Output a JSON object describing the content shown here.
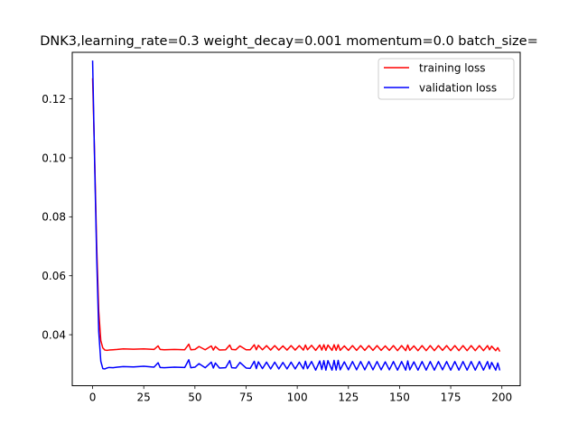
{
  "chart_data": {
    "type": "line",
    "title": "DNK3,learning_rate=0.3  weight_decay=0.001  momentum=0.0  batch_size=",
    "xlabel": "",
    "ylabel": "",
    "xlim": [
      -9.95,
      208.95
    ],
    "ylim": [
      0.0227,
      0.1358
    ],
    "xticks": [
      0,
      25,
      50,
      75,
      100,
      125,
      150,
      175,
      200
    ],
    "xtick_labels": [
      "0",
      "25",
      "50",
      "75",
      "100",
      "125",
      "150",
      "175",
      "200"
    ],
    "yticks": [
      0.04,
      0.06,
      0.08,
      0.1,
      0.12
    ],
    "ytick_labels": [
      "0.04",
      "0.06",
      "0.08",
      "0.10",
      "0.12"
    ],
    "grid": false,
    "legend_position": "top-right",
    "x": [
      0,
      1,
      2,
      3,
      4,
      5,
      6,
      7,
      8,
      10,
      12,
      15,
      20,
      25,
      30,
      32,
      33,
      35,
      40,
      45,
      47,
      48,
      50,
      52,
      55,
      58,
      59,
      60,
      62,
      65,
      67,
      68,
      70,
      72,
      75,
      77,
      79,
      80,
      81,
      83,
      85,
      87,
      89,
      91,
      93,
      95,
      97,
      99,
      101,
      103,
      104,
      105,
      107,
      109,
      111,
      112,
      113,
      114,
      115,
      117,
      118,
      119,
      120,
      121,
      123,
      125,
      127,
      129,
      131,
      133,
      135,
      137,
      139,
      141,
      143,
      145,
      147,
      149,
      151,
      153,
      154,
      155,
      157,
      159,
      161,
      163,
      165,
      167,
      169,
      171,
      173,
      175,
      177,
      179,
      181,
      183,
      185,
      187,
      189,
      191,
      193,
      194,
      195,
      197,
      198,
      199
    ],
    "series": [
      {
        "name": "training loss",
        "color": "#ff0000",
        "values": [
          0.127,
          0.1,
          0.07,
          0.048,
          0.038,
          0.0355,
          0.0348,
          0.0347,
          0.0348,
          0.0349,
          0.035,
          0.0352,
          0.0351,
          0.0352,
          0.035,
          0.0362,
          0.035,
          0.0349,
          0.035,
          0.0349,
          0.0368,
          0.0349,
          0.035,
          0.036,
          0.0349,
          0.0362,
          0.0348,
          0.036,
          0.0348,
          0.0349,
          0.0365,
          0.035,
          0.0349,
          0.0362,
          0.0349,
          0.0349,
          0.0366,
          0.0349,
          0.0364,
          0.0349,
          0.0363,
          0.0348,
          0.0363,
          0.0348,
          0.0362,
          0.0348,
          0.0363,
          0.0348,
          0.0363,
          0.0348,
          0.0365,
          0.0349,
          0.0364,
          0.0347,
          0.0365,
          0.0348,
          0.0366,
          0.0347,
          0.0365,
          0.0347,
          0.0366,
          0.0347,
          0.0366,
          0.0347,
          0.0362,
          0.0347,
          0.0363,
          0.0347,
          0.0363,
          0.0347,
          0.0363,
          0.0347,
          0.0363,
          0.0347,
          0.0362,
          0.0347,
          0.0363,
          0.0346,
          0.0363,
          0.0346,
          0.0365,
          0.0347,
          0.0362,
          0.0346,
          0.0363,
          0.0346,
          0.0363,
          0.0346,
          0.0363,
          0.0347,
          0.0363,
          0.0346,
          0.0363,
          0.0346,
          0.0363,
          0.0346,
          0.0363,
          0.0346,
          0.0363,
          0.0346,
          0.0363,
          0.0349,
          0.0361,
          0.0346,
          0.0356,
          0.0343
        ]
      },
      {
        "name": "validation loss",
        "color": "#0000ff",
        "values": [
          0.133,
          0.098,
          0.066,
          0.041,
          0.031,
          0.0285,
          0.0284,
          0.0287,
          0.0289,
          0.0288,
          0.029,
          0.0292,
          0.0291,
          0.0293,
          0.029,
          0.0305,
          0.0289,
          0.0288,
          0.029,
          0.0289,
          0.0315,
          0.0288,
          0.029,
          0.0302,
          0.0288,
          0.0307,
          0.0287,
          0.0304,
          0.0287,
          0.0288,
          0.0312,
          0.0288,
          0.0287,
          0.0306,
          0.0287,
          0.0286,
          0.031,
          0.0285,
          0.0308,
          0.0285,
          0.0307,
          0.0284,
          0.0307,
          0.0284,
          0.0306,
          0.0284,
          0.0307,
          0.0284,
          0.0307,
          0.0284,
          0.031,
          0.0285,
          0.0309,
          0.028,
          0.0311,
          0.0282,
          0.0312,
          0.028,
          0.0312,
          0.028,
          0.0313,
          0.028,
          0.0313,
          0.0281,
          0.0308,
          0.0281,
          0.0309,
          0.0281,
          0.0309,
          0.0281,
          0.0309,
          0.0281,
          0.0309,
          0.0281,
          0.0308,
          0.0281,
          0.0309,
          0.028,
          0.0309,
          0.028,
          0.0311,
          0.0281,
          0.0308,
          0.028,
          0.0309,
          0.028,
          0.0309,
          0.028,
          0.0309,
          0.0281,
          0.0309,
          0.028,
          0.0309,
          0.028,
          0.0309,
          0.028,
          0.0309,
          0.028,
          0.0309,
          0.028,
          0.0309,
          0.0284,
          0.0306,
          0.028,
          0.0304,
          0.0279
        ]
      }
    ]
  }
}
